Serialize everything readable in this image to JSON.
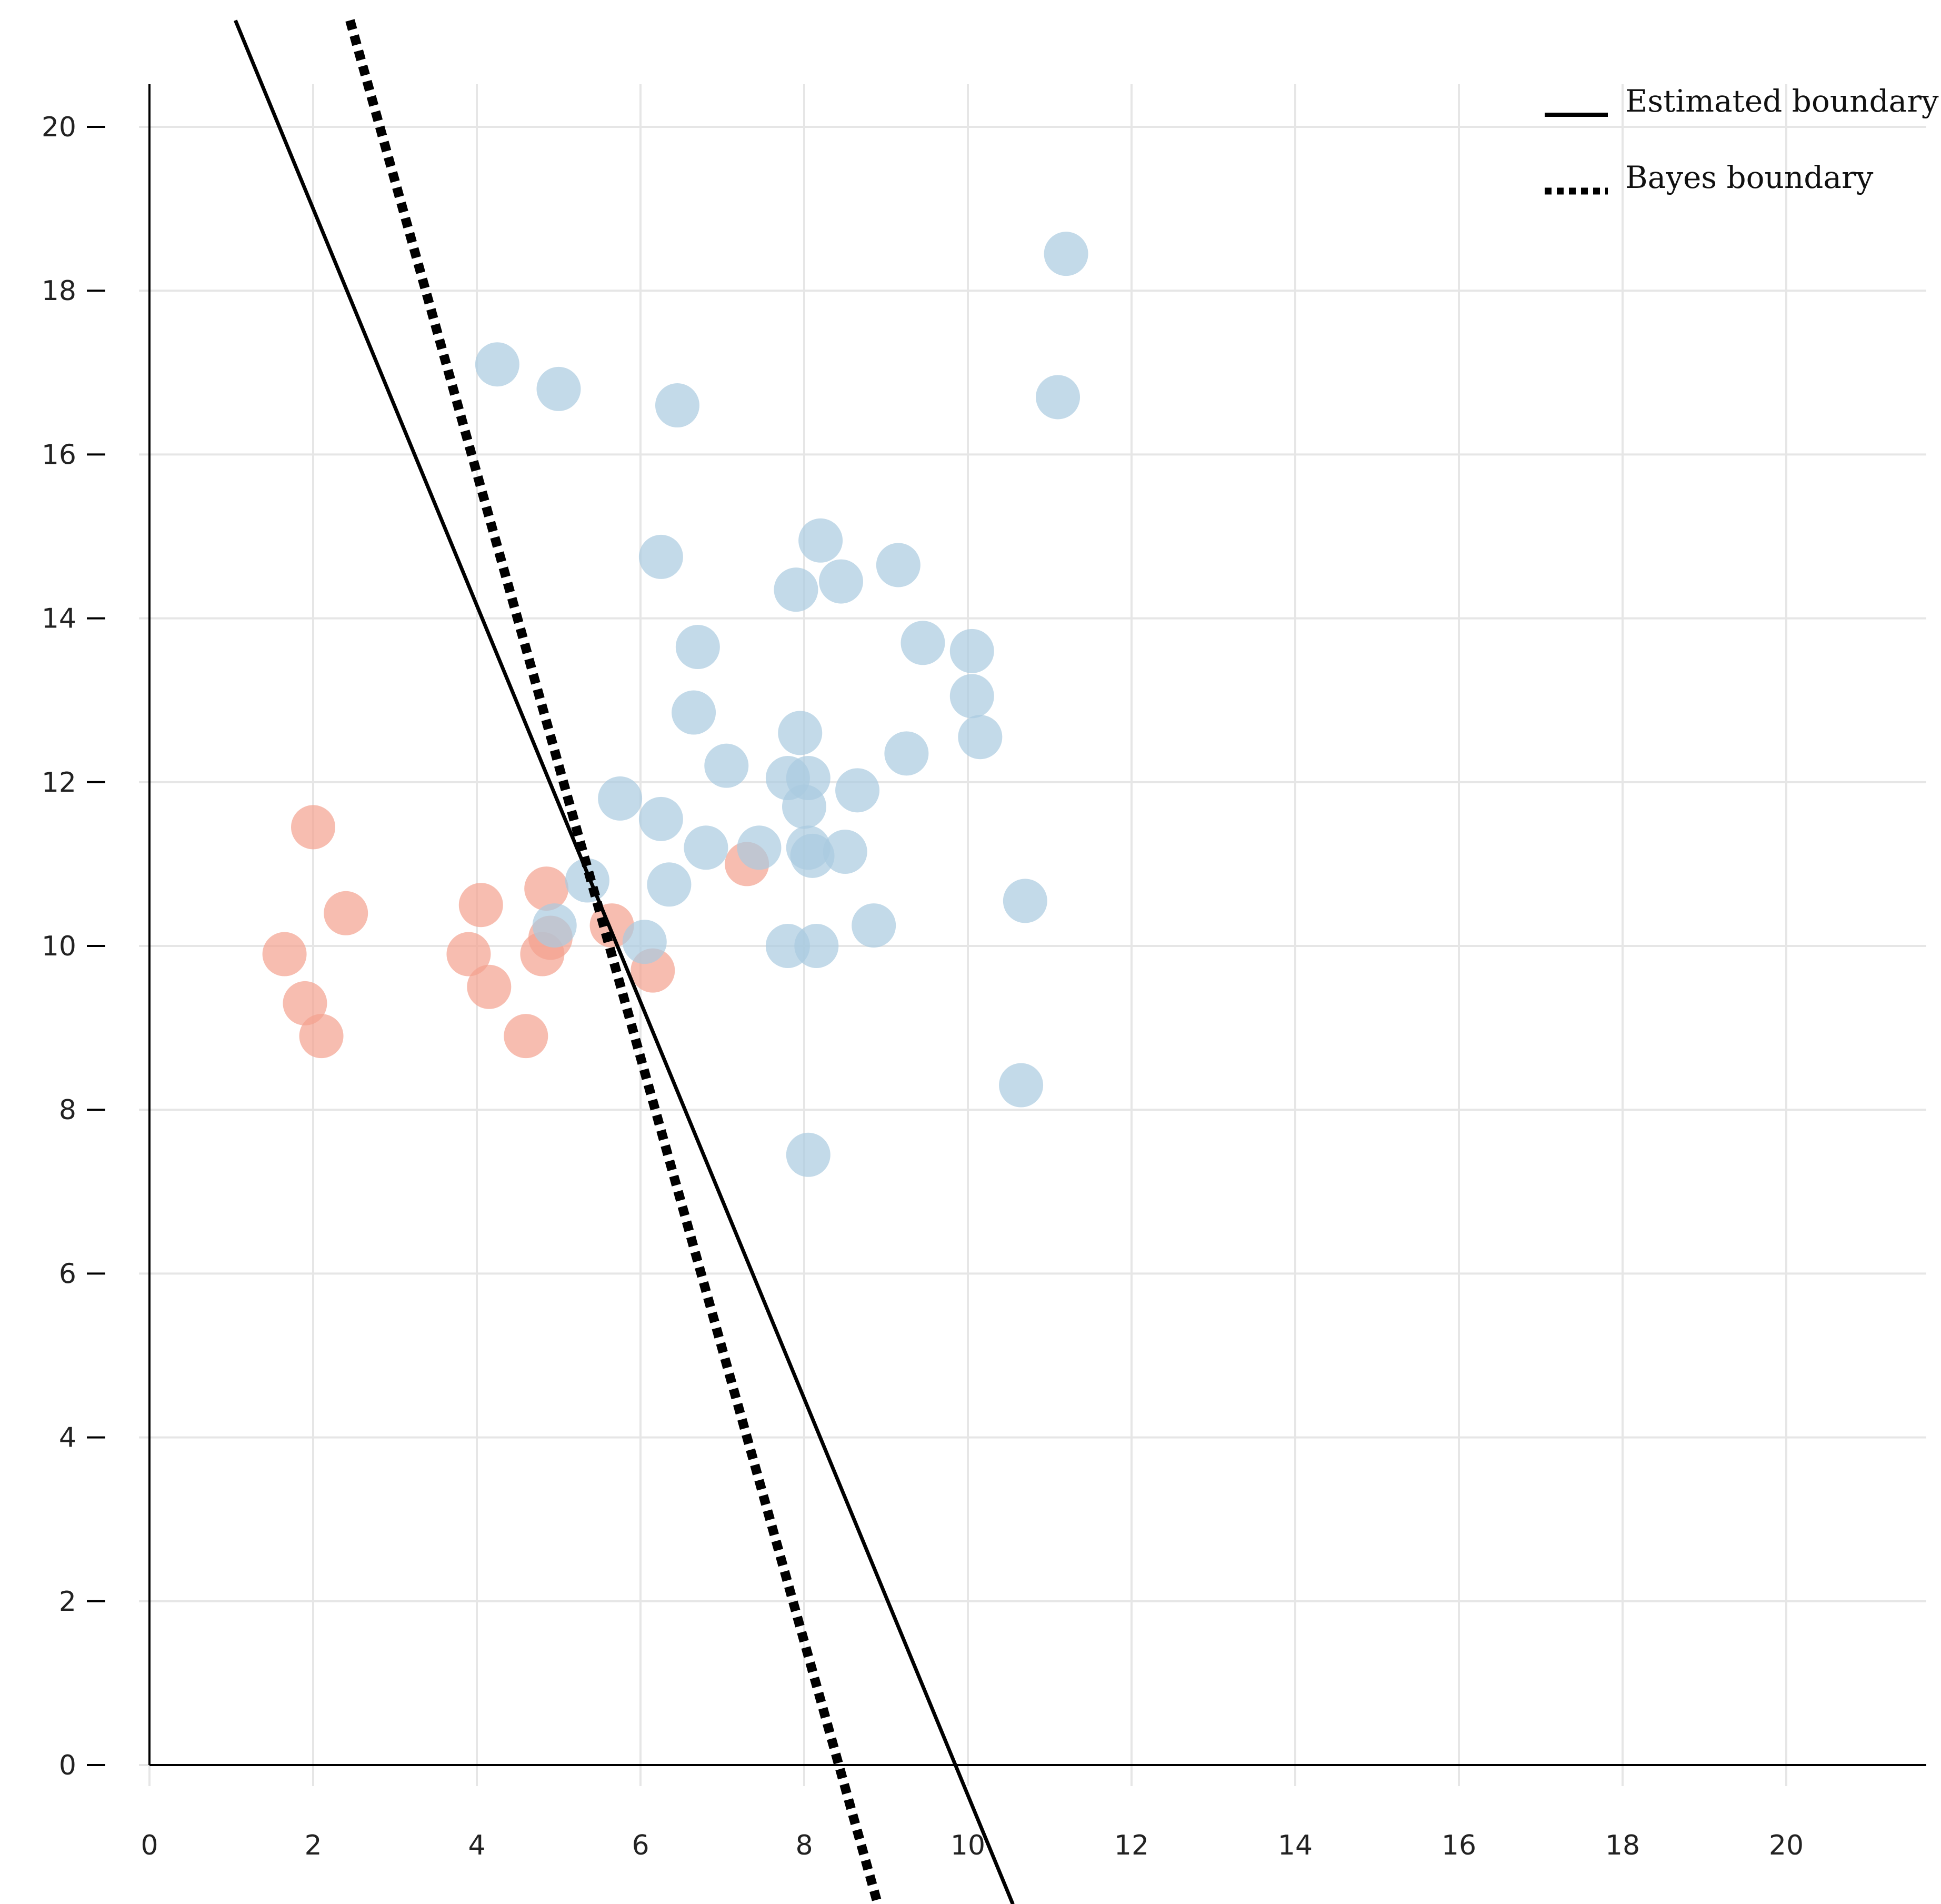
{
  "chart_data": {
    "type": "scatter",
    "xlim": [
      -1.5,
      21.8
    ],
    "ylim": [
      -1.7,
      21.3
    ],
    "x_ticks": [
      0,
      2,
      4,
      6,
      8,
      10,
      12,
      14,
      16,
      18,
      20
    ],
    "y_ticks": [
      0,
      2,
      4,
      6,
      8,
      10,
      12,
      14,
      16,
      18,
      20
    ],
    "x_tick_labels": [
      "0",
      "2",
      "4",
      "6",
      "8",
      "10",
      "12",
      "14",
      "16",
      "18",
      "20"
    ],
    "y_tick_labels": [
      "0",
      "2",
      "4",
      "6",
      "8",
      "10",
      "12",
      "14",
      "16",
      "18",
      "20"
    ],
    "grid": true,
    "legend_position": "top-right",
    "legend": [
      {
        "label": "Estimated boundary",
        "style": "solid"
      },
      {
        "label": "Bayes boundary",
        "style": "dotted"
      }
    ],
    "colors": {
      "class_a": "#F4A18E",
      "class_b": "#A9CAE0",
      "line": "#000000"
    },
    "series": [
      {
        "color": "#F4A18E",
        "points": [
          [
            2.0,
            11.45
          ],
          [
            2.4,
            10.4
          ],
          [
            1.65,
            9.9
          ],
          [
            1.9,
            9.3
          ],
          [
            2.1,
            8.9
          ],
          [
            4.05,
            10.5
          ],
          [
            3.9,
            9.9
          ],
          [
            4.15,
            9.5
          ],
          [
            4.6,
            8.9
          ],
          [
            4.85,
            10.7
          ],
          [
            4.8,
            9.9
          ],
          [
            4.9,
            10.1
          ],
          [
            5.65,
            10.25
          ],
          [
            6.15,
            9.7
          ],
          [
            7.3,
            11.0
          ]
        ]
      },
      {
        "color": "#A9CAE0",
        "points": [
          [
            4.25,
            17.1
          ],
          [
            5.0,
            16.8
          ],
          [
            6.45,
            16.6
          ],
          [
            11.2,
            18.45
          ],
          [
            11.1,
            16.7
          ],
          [
            6.25,
            14.75
          ],
          [
            8.2,
            14.95
          ],
          [
            7.9,
            14.35
          ],
          [
            8.45,
            14.45
          ],
          [
            9.15,
            14.65
          ],
          [
            6.7,
            13.65
          ],
          [
            9.45,
            13.7
          ],
          [
            10.05,
            13.6
          ],
          [
            10.05,
            13.05
          ],
          [
            10.15,
            12.55
          ],
          [
            6.65,
            12.85
          ],
          [
            7.95,
            12.6
          ],
          [
            7.05,
            12.2
          ],
          [
            9.25,
            12.35
          ],
          [
            7.8,
            12.05
          ],
          [
            8.05,
            12.05
          ],
          [
            5.75,
            11.8
          ],
          [
            8.0,
            11.7
          ],
          [
            8.65,
            11.9
          ],
          [
            6.25,
            11.55
          ],
          [
            6.8,
            11.2
          ],
          [
            7.45,
            11.2
          ],
          [
            8.05,
            11.2
          ],
          [
            8.1,
            11.1
          ],
          [
            8.5,
            11.15
          ],
          [
            5.35,
            10.8
          ],
          [
            6.35,
            10.75
          ],
          [
            10.7,
            10.55
          ],
          [
            4.95,
            10.25
          ],
          [
            6.05,
            10.05
          ],
          [
            7.8,
            10.0
          ],
          [
            8.15,
            10.0
          ],
          [
            8.85,
            10.25
          ],
          [
            10.65,
            8.3
          ],
          [
            8.05,
            7.45
          ]
        ]
      }
    ],
    "lines": [
      {
        "style": "solid",
        "from": [
          1.05,
          21.3
        ],
        "to": [
          10.55,
          -1.7
        ]
      },
      {
        "style": "dotted",
        "from": [
          2.45,
          21.3
        ],
        "to": [
          8.9,
          -1.7
        ]
      }
    ]
  }
}
